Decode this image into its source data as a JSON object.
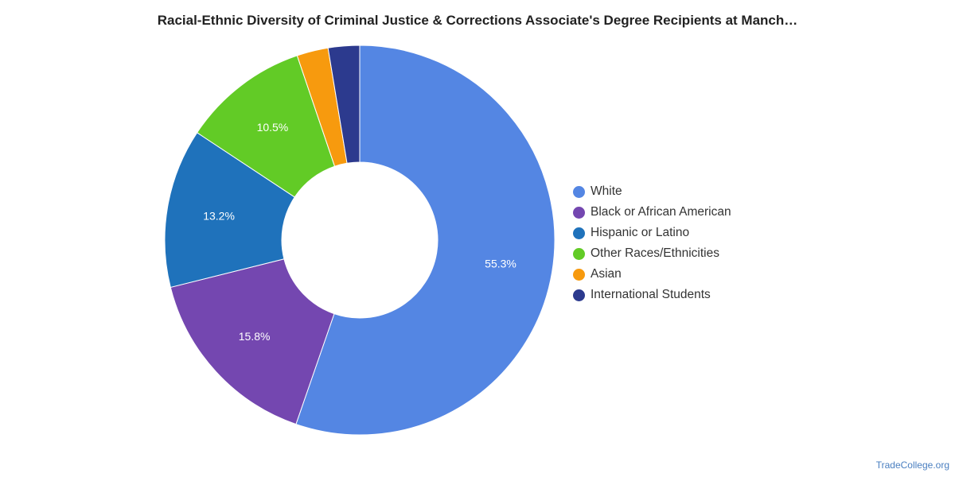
{
  "chart_data": {
    "type": "pie",
    "title": "Racial-Ethnic Diversity of Criminal Justice & Corrections Associate's Degree Recipients at Manch…",
    "donut": true,
    "legend_position": "right",
    "slices": [
      {
        "label": "White",
        "value": 55.3,
        "value_label": "55.3%",
        "color": "#5486e3"
      },
      {
        "label": "Black or African American",
        "value": 15.8,
        "value_label": "15.8%",
        "color": "#7447b0"
      },
      {
        "label": "Hispanic or Latino",
        "value": 13.2,
        "value_label": "13.2%",
        "color": "#1f72bb"
      },
      {
        "label": "Other Races/Ethnicities",
        "value": 10.5,
        "value_label": "10.5%",
        "color": "#62cb26"
      },
      {
        "label": "Asian",
        "value": 2.6,
        "value_label": "",
        "color": "#f79a0e"
      },
      {
        "label": "International Students",
        "value": 2.6,
        "value_label": "",
        "color": "#2c3a8e"
      }
    ]
  },
  "footer": {
    "source": "TradeCollege.org"
  }
}
